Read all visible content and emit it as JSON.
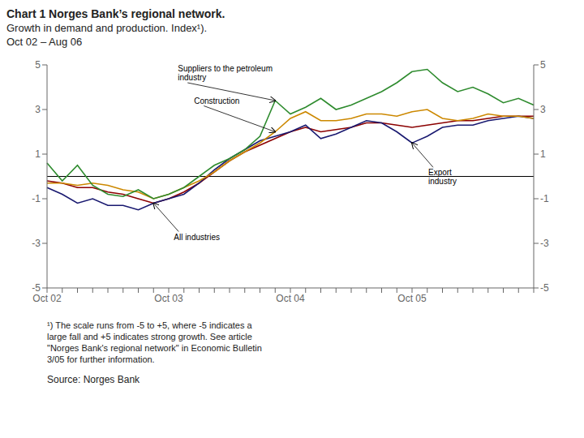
{
  "chart_data": {
    "type": "line",
    "title": "Chart 1 Norges Bank’s regional network.",
    "subtitle": [
      "Growth in demand and production. Index¹).",
      "Oct 02 – Aug 06"
    ],
    "notes": [
      "¹) The scale runs from -5 to +5, where -5 indicates a",
      "large fall and +5 indicates strong growth. See article",
      "\"Norges Bank's regional network\" in Economic Bulletin",
      "3/05 for further information."
    ],
    "source": "Source: Norges Bank",
    "categories": [
      "Oct 02",
      null,
      null,
      null,
      null,
      null,
      null,
      null,
      "Oct 03",
      null,
      null,
      null,
      null,
      null,
      null,
      null,
      "Oct 04",
      null,
      null,
      null,
      null,
      null,
      null,
      null,
      "Oct 05",
      null,
      null,
      null,
      null,
      null,
      null,
      null,
      null
    ],
    "series": [
      {
        "name": "All industries",
        "color": "#8b0000",
        "values": [
          -0.2,
          -0.3,
          -0.5,
          -0.5,
          -0.7,
          -0.8,
          -1.0,
          -1.2,
          -1.0,
          -0.7,
          -0.3,
          0.2,
          0.7,
          1.1,
          1.4,
          1.7,
          2.0,
          2.2,
          2.0,
          2.1,
          2.2,
          2.4,
          2.4,
          2.3,
          2.2,
          2.3,
          2.4,
          2.5,
          2.5,
          2.6,
          2.7,
          2.7,
          2.7
        ]
      },
      {
        "name": "Export\nindustry",
        "color": "#191970",
        "values": [
          -0.5,
          -0.8,
          -1.2,
          -1.0,
          -1.3,
          -1.3,
          -1.5,
          -1.2,
          -1.0,
          -0.8,
          -0.3,
          0.3,
          0.8,
          1.2,
          1.6,
          1.8,
          2.0,
          2.3,
          1.7,
          1.9,
          2.2,
          2.5,
          2.4,
          2.0,
          1.5,
          1.8,
          2.2,
          2.3,
          2.3,
          2.5,
          2.6,
          2.7,
          2.6
        ]
      },
      {
        "name": "Construction",
        "color": "#cc8800",
        "values": [
          -0.3,
          -0.3,
          -0.4,
          -0.3,
          -0.4,
          -0.6,
          -0.7,
          -1.0,
          -0.8,
          -0.5,
          -0.2,
          0.2,
          0.7,
          1.1,
          1.5,
          2.0,
          2.6,
          2.9,
          2.5,
          2.5,
          2.6,
          2.8,
          2.8,
          2.7,
          2.9,
          3.0,
          2.6,
          2.5,
          2.6,
          2.8,
          2.7,
          2.7,
          2.6
        ]
      },
      {
        "name": "Suppliers to the petroleum\nindustry",
        "color": "#2e8b2e",
        "values": [
          0.6,
          -0.2,
          0.5,
          -0.4,
          -0.8,
          -0.9,
          -0.6,
          -1.0,
          -0.8,
          -0.5,
          0.0,
          0.5,
          0.8,
          1.2,
          1.8,
          3.4,
          2.8,
          3.1,
          3.5,
          3.0,
          3.2,
          3.5,
          3.8,
          4.2,
          4.7,
          4.8,
          4.2,
          3.8,
          4.0,
          3.7,
          3.3,
          3.5,
          3.2
        ]
      }
    ],
    "ylim": [
      -5,
      5
    ],
    "yticks": [
      -5,
      -3,
      -1,
      1,
      3,
      5
    ],
    "y2lim": [
      -5,
      5
    ],
    "y2ticks": [
      -5,
      -3,
      -1,
      1,
      3,
      5
    ],
    "hline": 0.0,
    "grid": false
  }
}
